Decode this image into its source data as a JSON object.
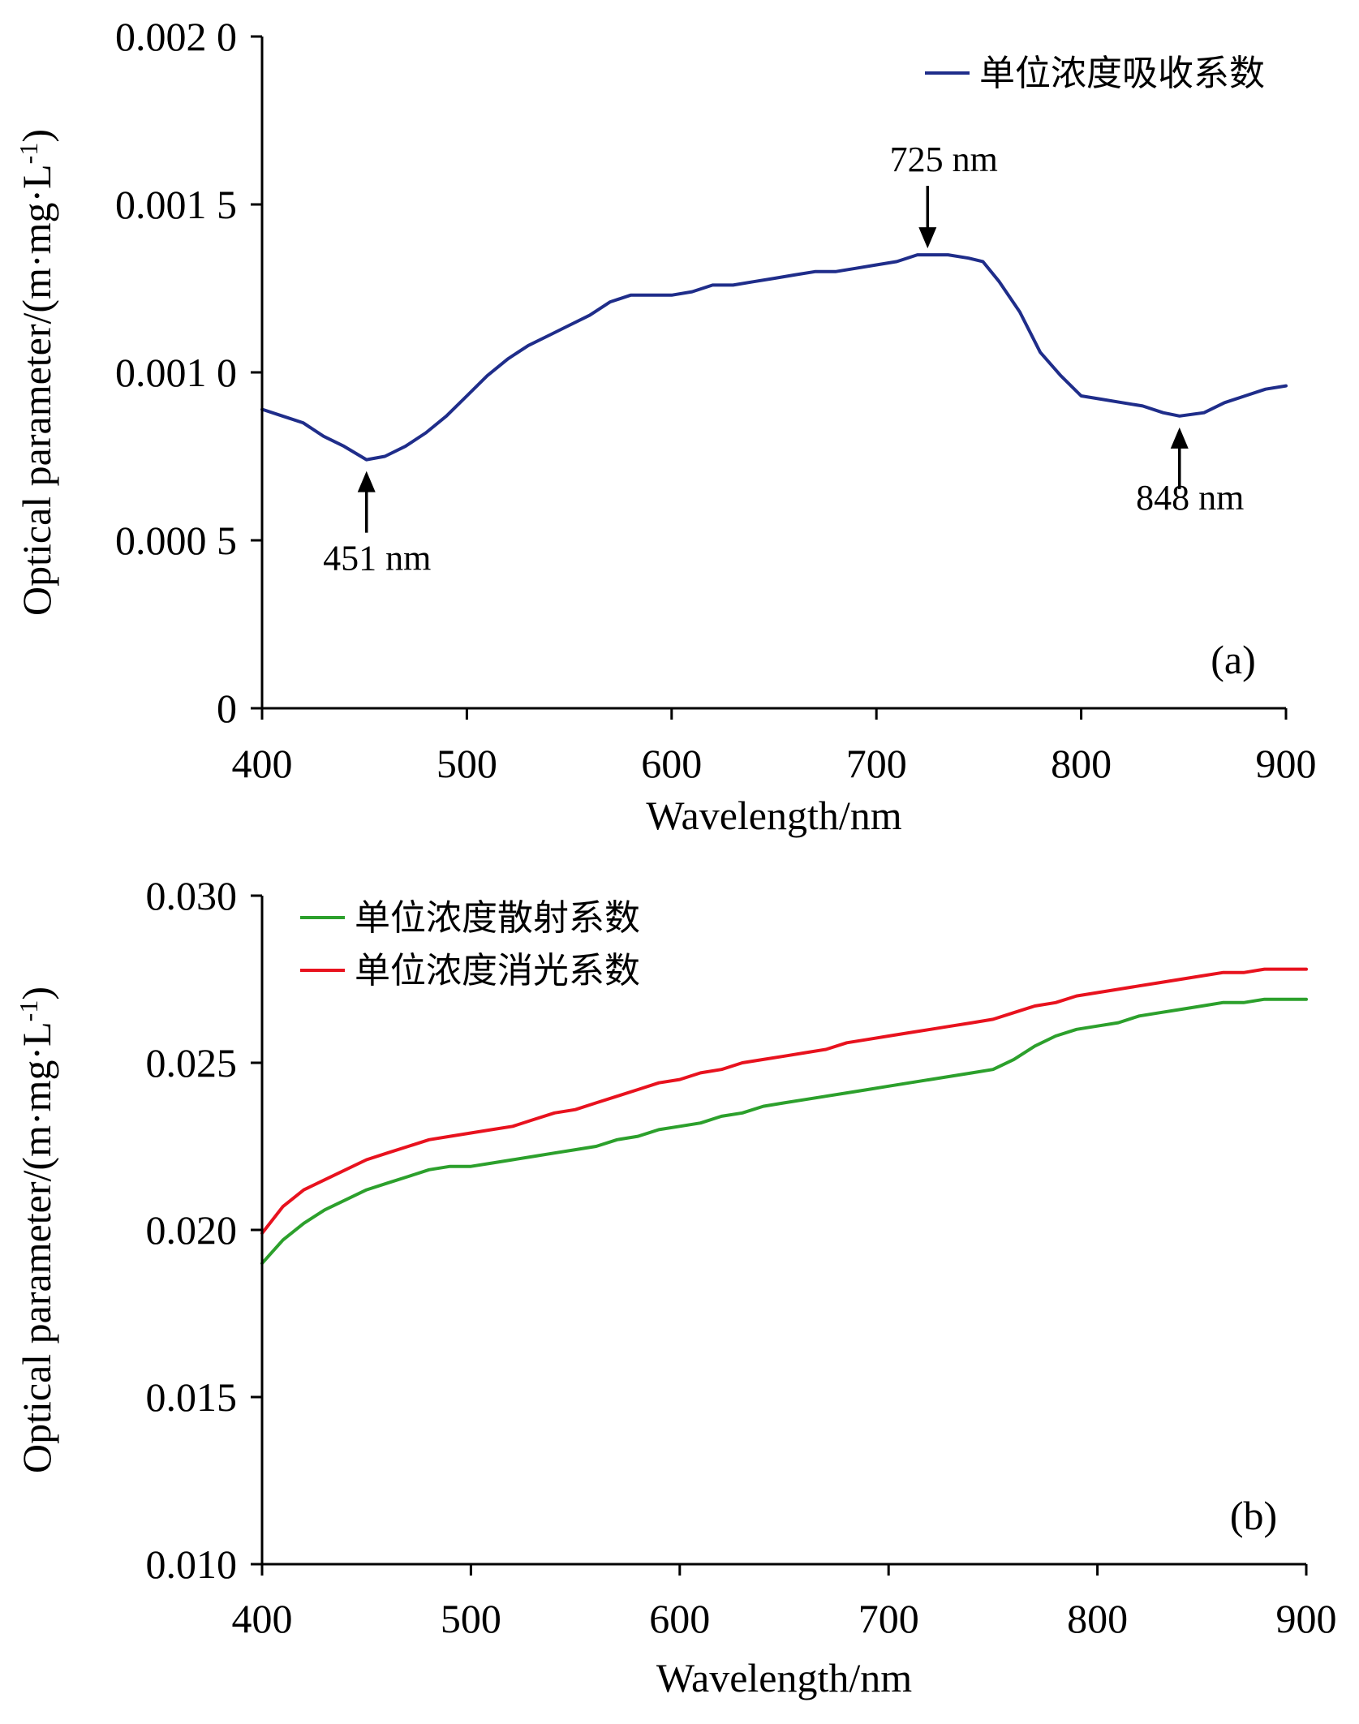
{
  "chart_data": [
    {
      "panel_label": "(a)",
      "type": "line",
      "title": "",
      "xlabel": "Wavelength/nm",
      "ylabel": "Optical parameter/(m·mg·L-1)",
      "ylabel_parts": {
        "main": "Optical parameter/(m·mg·L",
        "sup": "-1",
        "close": ")"
      },
      "xlim": [
        400,
        900
      ],
      "ylim": [
        0,
        0.002
      ],
      "xticks": [
        400,
        500,
        600,
        700,
        800,
        900
      ],
      "xtick_labels": [
        "400",
        "500",
        "600",
        "700",
        "800",
        "900"
      ],
      "yticks": [
        0,
        0.0005,
        0.001,
        0.0015,
        0.002
      ],
      "ytick_labels": [
        "0",
        "0.000 5",
        "0.001 0",
        "0.001 5",
        "0.002 0"
      ],
      "grid": false,
      "legend_position": "top-right",
      "series": [
        {
          "name": "单位浓度吸收系数",
          "color": "#1f2d8a",
          "x": [
            400,
            410,
            420,
            430,
            440,
            451,
            460,
            470,
            480,
            490,
            500,
            510,
            520,
            530,
            540,
            550,
            560,
            570,
            580,
            590,
            600,
            610,
            620,
            630,
            640,
            650,
            660,
            670,
            680,
            690,
            700,
            710,
            720,
            725,
            735,
            745,
            752,
            760,
            770,
            780,
            790,
            800,
            810,
            820,
            830,
            840,
            848,
            860,
            870,
            880,
            890,
            900
          ],
          "values": [
            0.00089,
            0.00087,
            0.00085,
            0.00081,
            0.00078,
            0.00074,
            0.00075,
            0.00078,
            0.00082,
            0.00087,
            0.00093,
            0.00099,
            0.00104,
            0.00108,
            0.00111,
            0.00114,
            0.00117,
            0.00121,
            0.00123,
            0.00123,
            0.00123,
            0.00124,
            0.00126,
            0.00126,
            0.00127,
            0.00128,
            0.00129,
            0.0013,
            0.0013,
            0.00131,
            0.00132,
            0.00133,
            0.00135,
            0.00135,
            0.00135,
            0.00134,
            0.00133,
            0.00127,
            0.00118,
            0.00106,
            0.00099,
            0.00093,
            0.00092,
            0.00091,
            0.0009,
            0.00088,
            0.00087,
            0.00088,
            0.00091,
            0.00093,
            0.00095,
            0.00096
          ]
        }
      ],
      "annotations": [
        {
          "text": "451 nm",
          "x": 451,
          "y": 0.00074,
          "direction": "up"
        },
        {
          "text": "725 nm",
          "x": 725,
          "y": 0.00135,
          "direction": "down"
        },
        {
          "text": "848 nm",
          "x": 848,
          "y": 0.00087,
          "direction": "up"
        }
      ]
    },
    {
      "panel_label": "(b)",
      "type": "line",
      "title": "",
      "xlabel": "Wavelength/nm",
      "ylabel": "Optical parameter/(m·mg·L-1)",
      "ylabel_parts": {
        "main": "Optical parameter/(m·mg·L",
        "sup": "-1",
        "close": ")"
      },
      "xlim": [
        400,
        900
      ],
      "ylim": [
        0.01,
        0.03
      ],
      "xticks": [
        400,
        500,
        600,
        700,
        800,
        900
      ],
      "xtick_labels": [
        "400",
        "500",
        "600",
        "700",
        "800",
        "900"
      ],
      "yticks": [
        0.01,
        0.015,
        0.02,
        0.025,
        0.03
      ],
      "ytick_labels": [
        "0.010",
        "0.015",
        "0.020",
        "0.025",
        "0.030"
      ],
      "grid": false,
      "legend_position": "top-left",
      "series": [
        {
          "name": "单位浓度散射系数",
          "color": "#2ca02c",
          "x": [
            400,
            410,
            420,
            430,
            440,
            450,
            460,
            470,
            480,
            490,
            500,
            510,
            520,
            530,
            540,
            550,
            560,
            570,
            580,
            590,
            600,
            610,
            620,
            630,
            640,
            650,
            660,
            670,
            680,
            690,
            700,
            710,
            720,
            730,
            740,
            750,
            760,
            770,
            780,
            790,
            800,
            810,
            820,
            830,
            840,
            850,
            860,
            870,
            880,
            890,
            900
          ],
          "values": [
            0.019,
            0.0197,
            0.0202,
            0.0206,
            0.0209,
            0.0212,
            0.0214,
            0.0216,
            0.0218,
            0.0219,
            0.0219,
            0.022,
            0.0221,
            0.0222,
            0.0223,
            0.0224,
            0.0225,
            0.0227,
            0.0228,
            0.023,
            0.0231,
            0.0232,
            0.0234,
            0.0235,
            0.0237,
            0.0238,
            0.0239,
            0.024,
            0.0241,
            0.0242,
            0.0243,
            0.0244,
            0.0245,
            0.0246,
            0.0247,
            0.0248,
            0.0251,
            0.0255,
            0.0258,
            0.026,
            0.0261,
            0.0262,
            0.0264,
            0.0265,
            0.0266,
            0.0267,
            0.0268,
            0.0268,
            0.0269,
            0.0269,
            0.0269
          ]
        },
        {
          "name": "单位浓度消光系数",
          "color": "#e8121e",
          "x": [
            400,
            410,
            420,
            430,
            440,
            450,
            460,
            470,
            480,
            490,
            500,
            510,
            520,
            530,
            540,
            550,
            560,
            570,
            580,
            590,
            600,
            610,
            620,
            630,
            640,
            650,
            660,
            670,
            680,
            690,
            700,
            710,
            720,
            730,
            740,
            750,
            760,
            770,
            780,
            790,
            800,
            810,
            820,
            830,
            840,
            850,
            860,
            870,
            880,
            890,
            900
          ],
          "values": [
            0.0199,
            0.0207,
            0.0212,
            0.0215,
            0.0218,
            0.0221,
            0.0223,
            0.0225,
            0.0227,
            0.0228,
            0.0229,
            0.023,
            0.0231,
            0.0233,
            0.0235,
            0.0236,
            0.0238,
            0.024,
            0.0242,
            0.0244,
            0.0245,
            0.0247,
            0.0248,
            0.025,
            0.0251,
            0.0252,
            0.0253,
            0.0254,
            0.0256,
            0.0257,
            0.0258,
            0.0259,
            0.026,
            0.0261,
            0.0262,
            0.0263,
            0.0265,
            0.0267,
            0.0268,
            0.027,
            0.0271,
            0.0272,
            0.0273,
            0.0274,
            0.0275,
            0.0276,
            0.0277,
            0.0277,
            0.0278,
            0.0278,
            0.0278
          ]
        }
      ]
    }
  ]
}
